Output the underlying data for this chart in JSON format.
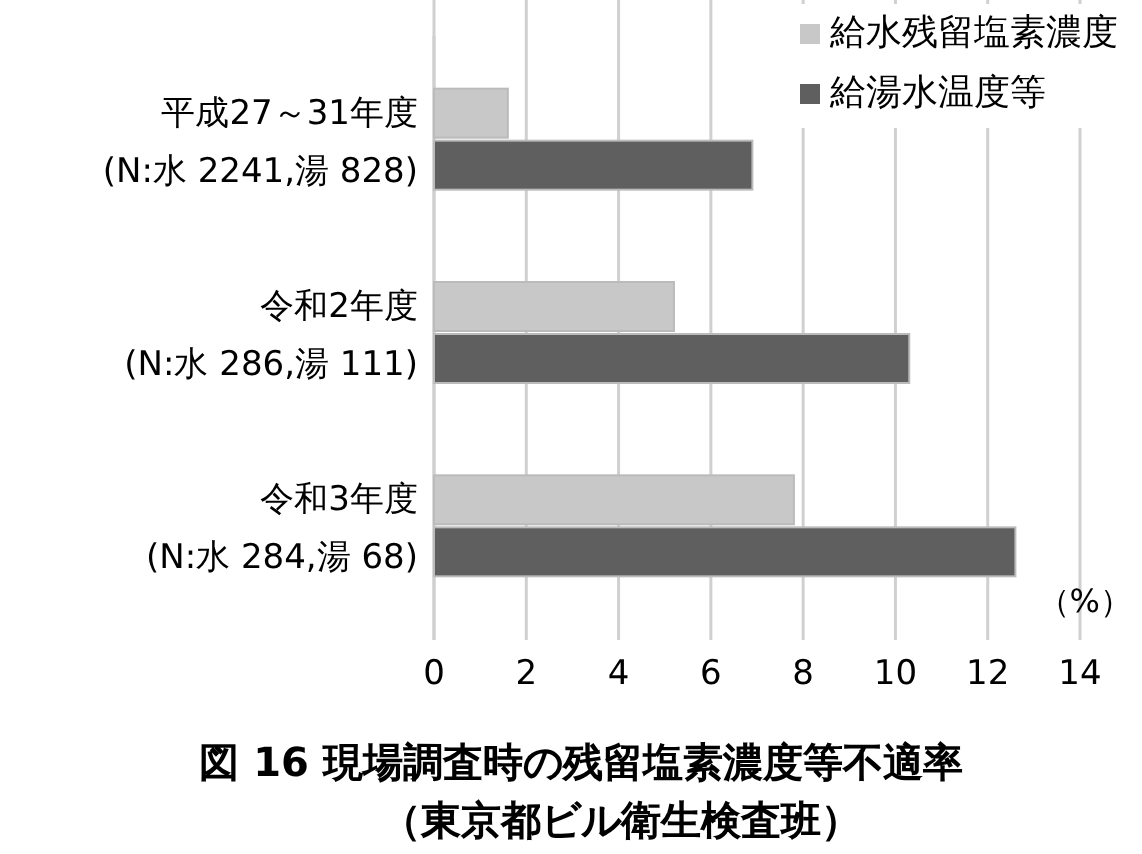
{
  "chart_data": {
    "type": "bar",
    "orientation": "horizontal",
    "title": "図 16 現場調査時の残留塩素濃度等不適率",
    "subtitle": "（東京都ビル衛生検査班）",
    "xlabel": "（%）",
    "categories": [
      "平成27～31年度\n(N:水 2241,湯 828)",
      "令和2年度\n(N:水 286,湯 111)",
      "令和3年度\n(N:水 284,湯 68)"
    ],
    "series": [
      {
        "name": "給水残留塩素濃度",
        "color": "#c8c8c8",
        "values": [
          1.6,
          5.2,
          7.8
        ]
      },
      {
        "name": "給湯水温度等",
        "color": "#5f5f5f",
        "values": [
          6.9,
          10.3,
          12.6
        ]
      }
    ],
    "xlim": [
      0,
      14
    ],
    "xticks": [
      0,
      2,
      4,
      6,
      8,
      10,
      12,
      14
    ],
    "grid": "x",
    "legend": "top right"
  }
}
